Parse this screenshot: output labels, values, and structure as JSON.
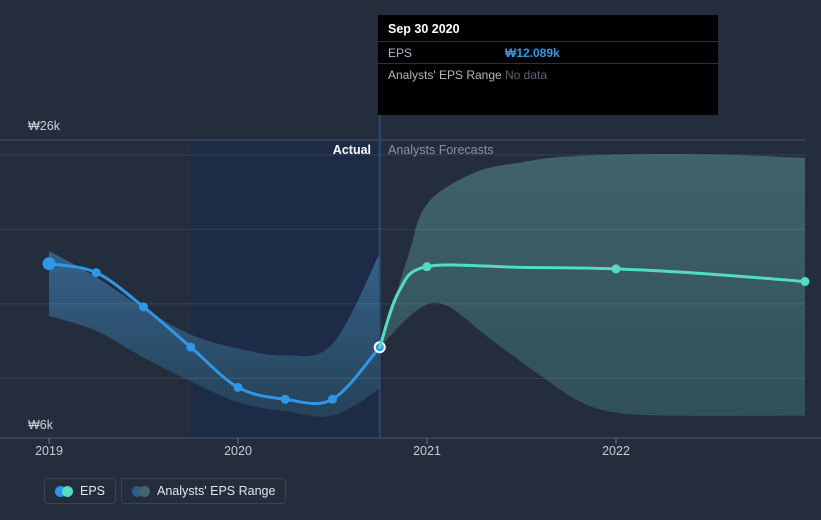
{
  "colors": {
    "background": "#242d3c",
    "eps_line": "#2f97e8",
    "forecast_line": "#53dcc0",
    "actual_band_fill": "#2e5475",
    "forecast_band_fill": "#3a5a62",
    "highlight_span_fill": "#1d2b47",
    "divider_line": "#2b4a73",
    "tooltip_background": "#000000",
    "tooltip_value_blue": "#3398ea"
  },
  "tooltip": {
    "date": "Sep 30 2020",
    "rows": [
      {
        "label": "EPS",
        "value": "₩12.089k"
      },
      {
        "label": "Analysts' EPS Range",
        "value": "No data"
      }
    ]
  },
  "annotations": {
    "actual": "Actual",
    "forecast": "Analysts Forecasts"
  },
  "y_axis": {
    "top_label": "₩26k",
    "bottom_label": "₩6k"
  },
  "legend": [
    {
      "label": "EPS",
      "dot_colors": [
        "#2f97e8",
        "#53dcc0"
      ]
    },
    {
      "label": "Analysts' EPS Range",
      "dot_colors": [
        "#2e5e86",
        "#41656c"
      ]
    }
  ],
  "chart_data": {
    "type": "line",
    "title": "EPS actual and analysts forecast",
    "currency": "KRW",
    "unit": "thousands of won (k)",
    "x_ticks": [
      2019,
      2020,
      2021,
      2022
    ],
    "x_range": [
      2018.74,
      2023.08
    ],
    "y_range_k": [
      6,
      26
    ],
    "y_gridlines_k": [
      25,
      20,
      15,
      10
    ],
    "highlight_span": {
      "from": 2019.75,
      "to": 2020.75,
      "label": "Actual"
    },
    "divider_x": 2020.75,
    "hover_point": {
      "date": "Sep 30 2020",
      "x": 2020.75,
      "value_k": 12.089
    },
    "series": [
      {
        "name": "EPS (actual)",
        "color": "#2f97e8",
        "points": [
          {
            "x": 2019.0,
            "v": 17.7,
            "marker": "big"
          },
          {
            "x": 2019.25,
            "v": 17.1,
            "marker": "dot"
          },
          {
            "x": 2019.5,
            "v": 14.8,
            "marker": "dot"
          },
          {
            "x": 2019.75,
            "v": 12.1,
            "marker": "dot"
          },
          {
            "x": 2020.0,
            "v": 9.4,
            "marker": "dot"
          },
          {
            "x": 2020.25,
            "v": 8.6,
            "marker": "dot"
          },
          {
            "x": 2020.5,
            "v": 8.6,
            "marker": "dot"
          },
          {
            "x": 2020.75,
            "v": 12.089,
            "marker": "ring"
          }
        ]
      },
      {
        "name": "EPS (analysts forecast)",
        "color": "#53dcc0",
        "points": [
          {
            "x": 2020.75,
            "v": 12.089,
            "marker": "none"
          },
          {
            "x": 2020.85,
            "v": 15.8,
            "marker": "none"
          },
          {
            "x": 2021.0,
            "v": 17.5,
            "marker": "dot"
          },
          {
            "x": 2021.5,
            "v": 17.45,
            "marker": "none"
          },
          {
            "x": 2022.0,
            "v": 17.35,
            "marker": "dot"
          },
          {
            "x": 2022.5,
            "v": 17.0,
            "marker": "none"
          },
          {
            "x": 2023.0,
            "v": 16.5,
            "marker": "dot"
          }
        ]
      }
    ],
    "bands": [
      {
        "name": "Analysts' EPS Range (actual)",
        "fill": "gradBlue",
        "top": [
          [
            2019.0,
            18.55
          ],
          [
            2019.25,
            16.8
          ],
          [
            2019.5,
            14.7
          ],
          [
            2019.75,
            12.95
          ],
          [
            2020.0,
            12.0
          ],
          [
            2020.25,
            11.55
          ],
          [
            2020.5,
            12.3
          ],
          [
            2020.75,
            18.4
          ]
        ],
        "bottom": [
          [
            2019.0,
            14.2
          ],
          [
            2019.25,
            13.2
          ],
          [
            2019.5,
            11.4
          ],
          [
            2019.75,
            9.8
          ],
          [
            2020.0,
            8.4
          ],
          [
            2020.25,
            7.8
          ],
          [
            2020.5,
            7.5
          ],
          [
            2020.75,
            9.3
          ]
        ]
      },
      {
        "name": "Analysts' EPS Range (forecast)",
        "fill": "gradTeal",
        "top": [
          [
            2020.75,
            12.089
          ],
          [
            2020.9,
            18.2
          ],
          [
            2021.0,
            21.7
          ],
          [
            2021.25,
            23.8
          ],
          [
            2021.5,
            24.5
          ],
          [
            2021.75,
            24.9
          ],
          [
            2022.2,
            25.05
          ],
          [
            2022.6,
            25.0
          ],
          [
            2023.0,
            24.8
          ]
        ],
        "bottom": [
          [
            2020.75,
            12.089
          ],
          [
            2020.95,
            14.6
          ],
          [
            2021.1,
            14.9
          ],
          [
            2021.35,
            12.5
          ],
          [
            2021.6,
            10.2
          ],
          [
            2021.8,
            8.5
          ],
          [
            2022.0,
            7.7
          ],
          [
            2022.3,
            7.5
          ],
          [
            2023.0,
            7.5
          ]
        ]
      }
    ]
  }
}
